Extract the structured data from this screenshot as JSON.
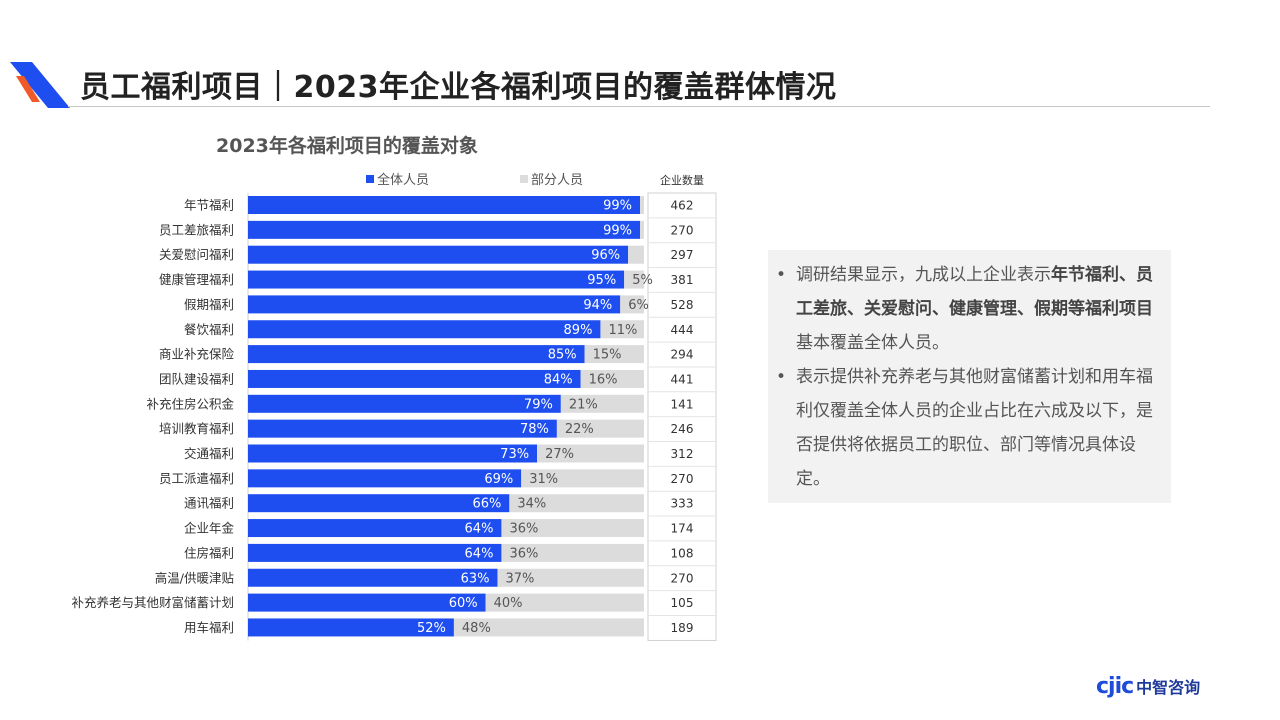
{
  "header": {
    "title": "员工福利项目｜2023年企业各福利项目的覆盖群体情况"
  },
  "colors": {
    "full": "#1e4ef0",
    "partial": "#dcdcdc",
    "accent_orange": "#f05a28",
    "brand_blue": "#1e4bd8"
  },
  "chart_data": {
    "type": "bar",
    "orientation": "horizontal",
    "stacked": true,
    "title": "2023年各福利项目的覆盖对象",
    "legend_position": "top",
    "count_header": "企业数量",
    "categories": [
      "年节福利",
      "员工差旅福利",
      "关爱慰问福利",
      "健康管理福利",
      "假期福利",
      "餐饮福利",
      "商业补充保险",
      "团队建设福利",
      "补充住房公积金",
      "培训教育福利",
      "交通福利",
      "员工派遣福利",
      "通讯福利",
      "企业年金",
      "住房福利",
      "高温/供暖津贴",
      "补充养老与其他财富储蓄计划",
      "用车福利"
    ],
    "series": [
      {
        "name": "全体人员",
        "values": [
          99,
          99,
          96,
          95,
          94,
          89,
          85,
          84,
          79,
          78,
          73,
          69,
          66,
          64,
          64,
          63,
          60,
          52
        ],
        "labels": [
          "99%",
          "99%",
          "96%",
          "95%",
          "94%",
          "89%",
          "85%",
          "84%",
          "79%",
          "78%",
          "73%",
          "69%",
          "66%",
          "64%",
          "64%",
          "63%",
          "60%",
          "52%"
        ]
      },
      {
        "name": "部分人员",
        "values": [
          1,
          1,
          4,
          5,
          6,
          11,
          15,
          16,
          21,
          22,
          27,
          31,
          34,
          36,
          36,
          37,
          40,
          48
        ],
        "labels": [
          "",
          "",
          "",
          "5%",
          "6%",
          "11%",
          "15%",
          "16%",
          "21%",
          "22%",
          "27%",
          "31%",
          "34%",
          "36%",
          "36%",
          "37%",
          "40%",
          "48%"
        ]
      }
    ],
    "counts": [
      "462",
      "270",
      "297",
      "381",
      "528",
      "444",
      "294",
      "441",
      "141",
      "246",
      "312",
      "270",
      "333",
      "174",
      "108",
      "270",
      "105",
      "189"
    ],
    "xlim": [
      0,
      100
    ],
    "unit": "%"
  },
  "note": {
    "bullets": [
      [
        {
          "text": "调研结果显示，九成以上企业表示",
          "bold": false
        },
        {
          "text": "年节福利、员工差旅、关爱慰问、健康管理、假期等福利项目",
          "bold": true
        },
        {
          "text": "基本覆盖全体人员。",
          "bold": false
        }
      ],
      [
        {
          "text": "表示提供补充养老与其他财富储蓄计划和用车福利仅覆盖全体人员的企业占比在六成及以下，是否提供将依据员工的职位、部门等情况具体设定。",
          "bold": false
        }
      ]
    ]
  },
  "brand": {
    "mark": "cjic",
    "name": "中智咨询"
  }
}
